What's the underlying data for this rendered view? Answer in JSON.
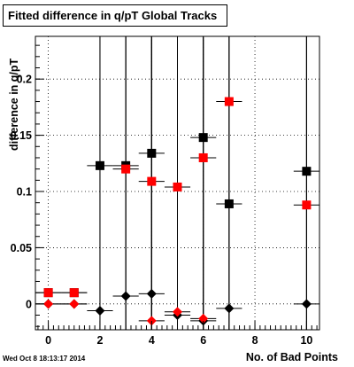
{
  "chart_data": {
    "type": "scatter",
    "title": "Fitted difference in q/pT  Global Tracks",
    "xlabel": "No. of Bad Points",
    "ylabel": "difference in q/pT",
    "xlim": [
      -0.5,
      10.5
    ],
    "ylim": [
      -0.023,
      0.238
    ],
    "x_ticks": [
      "0",
      "2",
      "4",
      "6",
      "8",
      "10"
    ],
    "y_ticks": [
      "0",
      "0.05",
      "0.1",
      "0.15",
      "0.2"
    ],
    "grid": true,
    "series": [
      {
        "color": "#000000",
        "marker": "square",
        "points": [
          {
            "x": 0,
            "y": 0.01,
            "xerr": 0.5,
            "yerr": 0.003
          },
          {
            "x": 1,
            "y": 0.01,
            "xerr": 0.5,
            "yerr": 0.003
          },
          {
            "x": 2,
            "y": 0.123,
            "xerr": 0.5,
            "yerr": 0.25
          },
          {
            "x": 3,
            "y": 0.123,
            "xerr": 0.5,
            "yerr": 0.25
          },
          {
            "x": 4,
            "y": 0.134,
            "xerr": 0.5,
            "yerr": 0.25
          },
          {
            "x": 6,
            "y": 0.148,
            "xerr": 0.5,
            "yerr": 0.25
          },
          {
            "x": 7,
            "y": 0.089,
            "xerr": 0.5,
            "yerr": 0.25
          },
          {
            "x": 10,
            "y": 0.118,
            "xerr": 0.5,
            "yerr": 0.25
          }
        ]
      },
      {
        "color": "#ff0000",
        "marker": "square",
        "points": [
          {
            "x": 0,
            "y": 0.01,
            "xerr": 0.5,
            "yerr": 0.003
          },
          {
            "x": 1,
            "y": 0.01,
            "xerr": 0.5,
            "yerr": 0.003
          },
          {
            "x": 3,
            "y": 0.12,
            "xerr": 0.5,
            "yerr": 0.25
          },
          {
            "x": 4,
            "y": 0.109,
            "xerr": 0.5,
            "yerr": 0.25
          },
          {
            "x": 5,
            "y": 0.104,
            "xerr": 0.5,
            "yerr": 0.25
          },
          {
            "x": 6,
            "y": 0.13,
            "xerr": 0.5,
            "yerr": 0.25
          },
          {
            "x": 7,
            "y": 0.18,
            "xerr": 0.5,
            "yerr": 0.25
          },
          {
            "x": 10,
            "y": 0.088,
            "xerr": 0.5,
            "yerr": 0.25
          }
        ]
      },
      {
        "color": "#000000",
        "marker": "diamond",
        "points": [
          {
            "x": 0,
            "y": 0.0,
            "xerr": 0.5,
            "yerr": 0.002
          },
          {
            "x": 1,
            "y": 0.0,
            "xerr": 0.5,
            "yerr": 0.002
          },
          {
            "x": 2,
            "y": -0.006,
            "xerr": 0.5,
            "yerr": 0.25
          },
          {
            "x": 3,
            "y": 0.007,
            "xerr": 0.5,
            "yerr": 0.25
          },
          {
            "x": 4,
            "y": 0.009,
            "xerr": 0.5,
            "yerr": 0.25
          },
          {
            "x": 5,
            "y": -0.01,
            "xerr": 0.5,
            "yerr": 0.25
          },
          {
            "x": 6,
            "y": -0.015,
            "xerr": 0.5,
            "yerr": 0.25
          },
          {
            "x": 7,
            "y": -0.004,
            "xerr": 0.5,
            "yerr": 0.25
          },
          {
            "x": 10,
            "y": 0.0,
            "xerr": 0.5,
            "yerr": 0.25
          }
        ]
      },
      {
        "color": "#ff0000",
        "marker": "diamond",
        "points": [
          {
            "x": 0,
            "y": 0.0,
            "xerr": 0.5,
            "yerr": 0.002
          },
          {
            "x": 1,
            "y": 0.0,
            "xerr": 0.5,
            "yerr": 0.002
          },
          {
            "x": 4,
            "y": -0.015,
            "xerr": 0.5,
            "yerr": 0.25
          },
          {
            "x": 5,
            "y": -0.007,
            "xerr": 0.5,
            "yerr": 0.25
          },
          {
            "x": 6,
            "y": -0.013,
            "xerr": 0.5,
            "yerr": 0.25
          }
        ]
      }
    ]
  },
  "footer": {
    "timestamp": "Wed Oct  8 18:13:17 2014"
  }
}
